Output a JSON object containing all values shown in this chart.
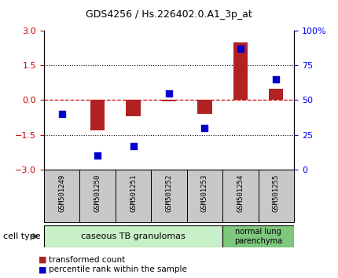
{
  "title": "GDS4256 / Hs.226402.0.A1_3p_at",
  "samples": [
    "GSM501249",
    "GSM501250",
    "GSM501251",
    "GSM501252",
    "GSM501253",
    "GSM501254",
    "GSM501255"
  ],
  "transformed_count": [
    0.0,
    -1.3,
    -0.7,
    -0.05,
    -0.6,
    2.5,
    0.5
  ],
  "percentile_rank": [
    40,
    10,
    17,
    55,
    30,
    87,
    65
  ],
  "bar_color": "#b22222",
  "dot_color": "#0000cc",
  "hline_color": "#cc0000",
  "left_ylim": [
    -3,
    3
  ],
  "left_yticks": [
    -3,
    -1.5,
    0,
    1.5,
    3
  ],
  "right_ylim": [
    0,
    100
  ],
  "right_yticks": [
    0,
    25,
    50,
    75,
    100
  ],
  "right_yticklabels": [
    "0",
    "25",
    "50",
    "75",
    "100%"
  ],
  "group1_label": "caseous TB granulomas",
  "group2_label": "normal lung\nparenchyma",
  "group1_color": "#c8f0c8",
  "group2_color": "#7ec87e",
  "cell_type_label": "cell type",
  "legend1": "transformed count",
  "legend2": "percentile rank within the sample",
  "bar_width": 0.4,
  "sample_box_color": "#c8c8c8",
  "spine_color": "#000000"
}
